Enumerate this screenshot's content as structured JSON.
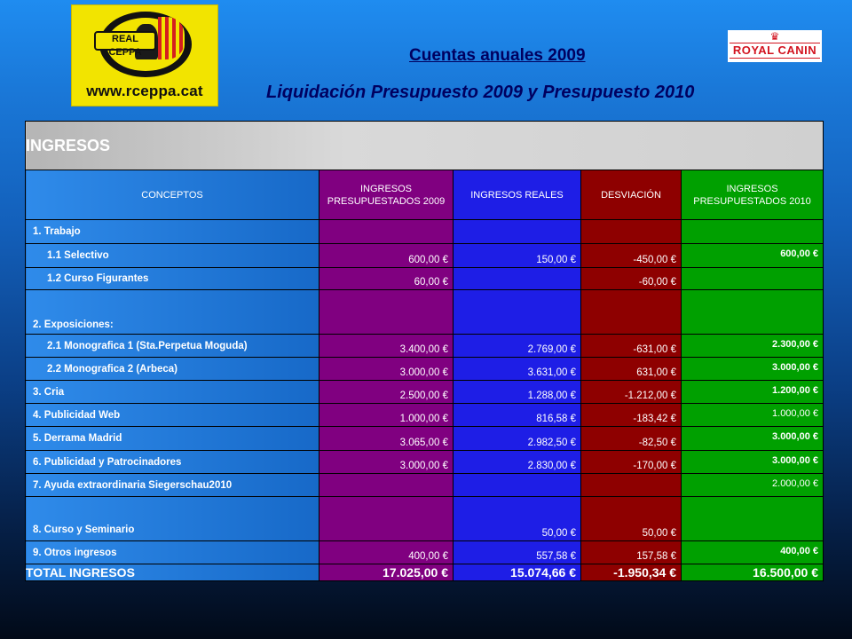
{
  "header": {
    "title": "Cuentas anuales 2009",
    "subtitle": "Liquidación Presupuesto 2009 y Presupuesto 2010",
    "logo_left": {
      "ribbon": "REAL CEPPA",
      "url": "www.rceppa.cat"
    },
    "logo_right": {
      "brand": "ROYAL CANIN"
    }
  },
  "table": {
    "section": "INGRESOS",
    "columns": [
      "CONCEPTOS",
      "INGRESOS PRESUPUESTADOS 2009",
      "INGRESOS REALES",
      "DESVIACIÓN",
      "INGRESOS PRESUPUESTADOS 2010"
    ],
    "rows": [
      {
        "concept": "1. Trabajo",
        "pres2009": "",
        "real": "",
        "desv": "",
        "pres2010": ""
      },
      {
        "concept": "1.1 Selectivo",
        "pres2009": "600,00 €",
        "real": "150,00 €",
        "desv": "-450,00 €",
        "pres2010": "600,00 €"
      },
      {
        "concept": "1.2 Curso Figurantes",
        "pres2009": "60,00 €",
        "real": "",
        "desv": "-60,00 €",
        "pres2010": ""
      },
      {
        "concept": "2. Exposiciones:",
        "pres2009": "",
        "real": "",
        "desv": "",
        "pres2010": ""
      },
      {
        "concept": "2.1 Monografica 1 (Sta.Perpetua  Moguda)",
        "pres2009": "3.400,00 €",
        "real": "2.769,00 €",
        "desv": "-631,00 €",
        "pres2010": "2.300,00 €"
      },
      {
        "concept": "2.2 Monografica 2 (Arbeca)",
        "pres2009": "3.000,00 €",
        "real": "3.631,00 €",
        "desv": "631,00 €",
        "pres2010": "3.000,00 €"
      },
      {
        "concept": "3. Cria",
        "pres2009": "2.500,00 €",
        "real": "1.288,00 €",
        "desv": "-1.212,00 €",
        "pres2010": "1.200,00 €"
      },
      {
        "concept": "4. Publicidad Web",
        "pres2009": "1.000,00 €",
        "real": "816,58 €",
        "desv": "-183,42 €",
        "pres2010": "1.000,00 €"
      },
      {
        "concept": "5. Derrama Madrid",
        "pres2009": "3.065,00 €",
        "real": "2.982,50 €",
        "desv": "-82,50 €",
        "pres2010": "3.000,00 €"
      },
      {
        "concept": "6. Publicidad y Patrocinadores",
        "pres2009": "3.000,00 €",
        "real": "2.830,00 €",
        "desv": "-170,00 €",
        "pres2010": "3.000,00 €"
      },
      {
        "concept": "7. Ayuda extraordinaria  Siegerschau2010",
        "pres2009": "",
        "real": "",
        "desv": "",
        "pres2010": "2.000,00 €"
      },
      {
        "concept": "8. Curso y Seminario",
        "pres2009": "",
        "real": "50,00 €",
        "desv": "50,00 €",
        "pres2010": ""
      },
      {
        "concept": "9. Otros ingresos",
        "pres2009": "400,00 €",
        "real": "557,58 €",
        "desv": "157,58 €",
        "pres2010": "400,00 €"
      }
    ],
    "total": {
      "concept": "TOTAL INGRESOS",
      "pres2009": "17.025,00 €",
      "real": "15.074,66 €",
      "desv": "-1.950,34 €",
      "pres2010": "16.500,00 €"
    }
  }
}
